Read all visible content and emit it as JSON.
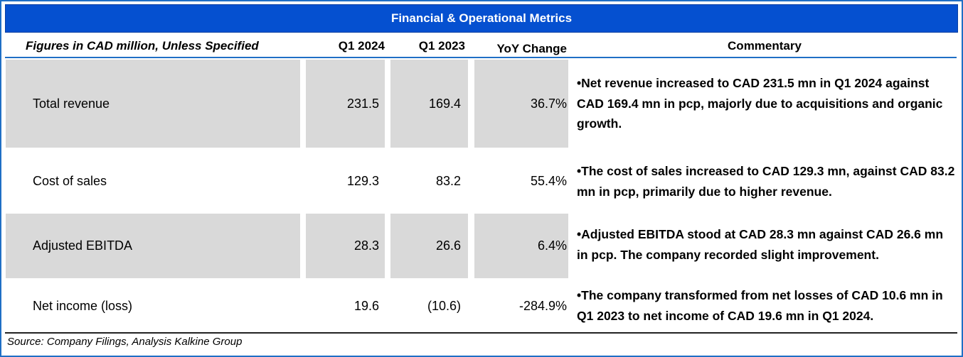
{
  "title": "Financial & Operational Metrics",
  "header": {
    "figures_label": "Figures in CAD million, Unless Specified",
    "col_q1_2024": "Q1 2024",
    "col_q1_2023": "Q1 2023",
    "col_yoy": "YoY Change",
    "col_commentary": "Commentary"
  },
  "rows": [
    {
      "label": "Total revenue",
      "q1_2024": "231.5",
      "q1_2023": "169.4",
      "yoy": "36.7%",
      "commentary": "•Net revenue increased to CAD 231.5 mn in Q1 2024 against CAD 169.4 mn in pcp, majorly due to acquisitions and organic growth."
    },
    {
      "label": "Cost of sales",
      "q1_2024": "129.3",
      "q1_2023": "83.2",
      "yoy": "55.4%",
      "commentary": "•The cost of sales increased to CAD 129.3 mn, against CAD 83.2 mn in pcp, primarily due to higher revenue."
    },
    {
      "label": "Adjusted EBITDA",
      "q1_2024": "28.3",
      "q1_2023": "26.6",
      "yoy": "6.4%",
      "commentary": "•Adjusted EBITDA stood at CAD 28.3 mn against CAD 26.6 mn in pcp. The company recorded slight improvement."
    },
    {
      "label": "Net income (loss)",
      "q1_2024": "19.6",
      "q1_2023": "(10.6)",
      "yoy": "-284.9%",
      "commentary": "•The company transformed from net losses of CAD 10.6 mn in Q1 2023 to net income of CAD 19.6 mn in Q1 2024."
    }
  ],
  "source": "Source: Company Filings, Analysis Kalkine Group",
  "colors": {
    "title_bar": "#0550d0",
    "frame_border": "#1f6fc5",
    "row_shade": "#d9d9d9"
  }
}
